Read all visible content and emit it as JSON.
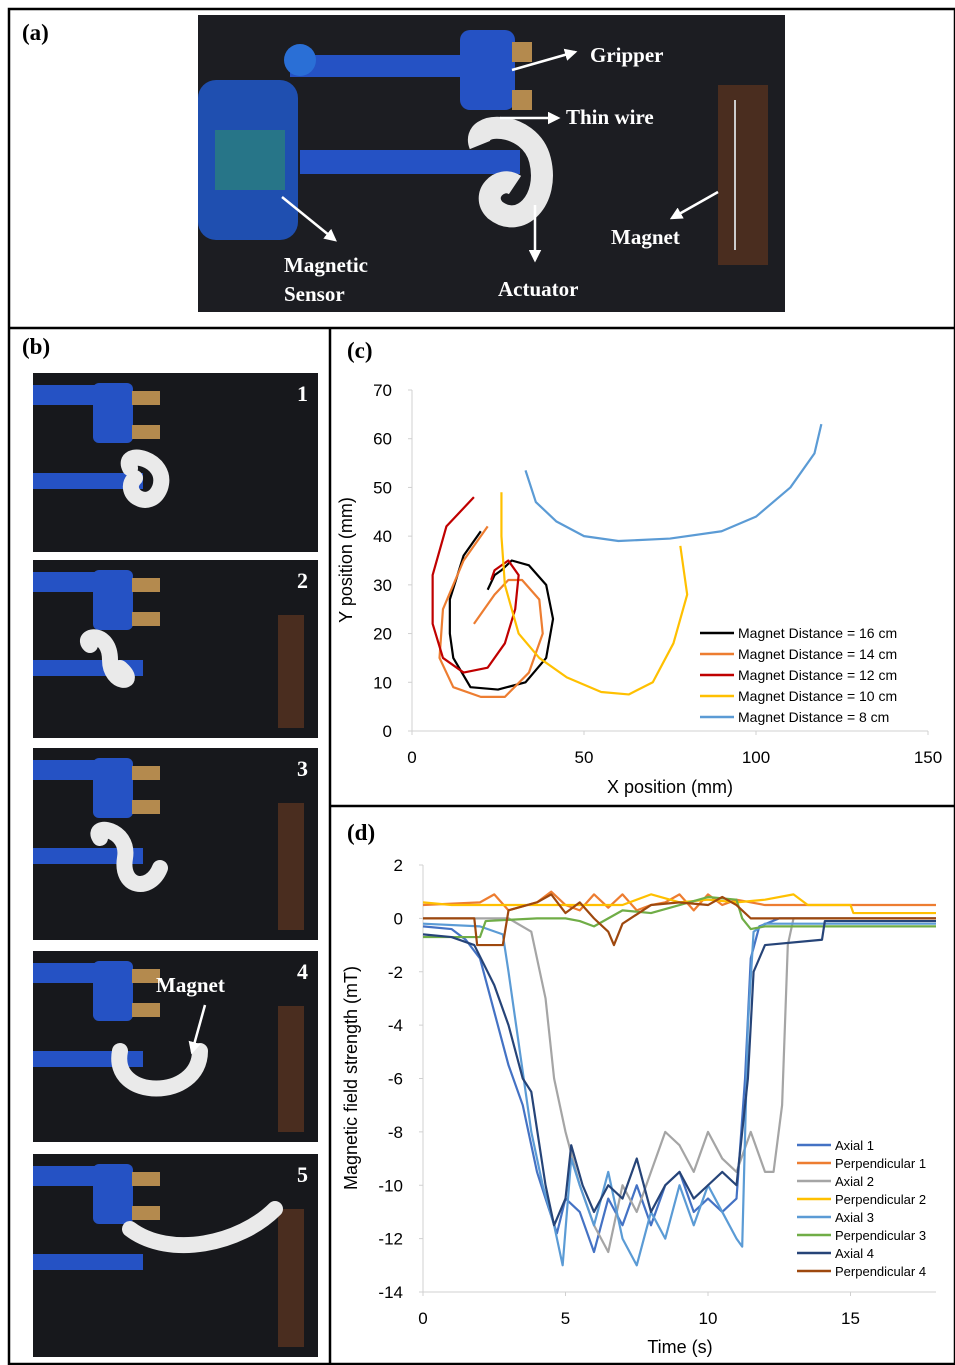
{
  "panels": {
    "a": {
      "label": "(a)",
      "gripper": "Gripper",
      "wire": "Thin wire",
      "sensor": [
        "Magnetic",
        "Sensor"
      ],
      "actuator": "Actuator",
      "magnet": "Magnet"
    },
    "b": {
      "label": "(b)",
      "frames": [
        "1",
        "2",
        "3",
        "4",
        "5"
      ],
      "magnet": "Magnet"
    },
    "c": {
      "label": "(c)"
    },
    "d": {
      "label": "(d)"
    }
  },
  "chart_data": [
    {
      "type": "line",
      "xlabel": "X position (mm)",
      "ylabel": "Y position (mm)",
      "xlim": [
        0,
        150
      ],
      "ylim": [
        0,
        70
      ],
      "xticks": [
        0,
        50,
        100,
        150
      ],
      "yticks": [
        0,
        10,
        20,
        30,
        40,
        50,
        60,
        70
      ],
      "legend": "lower right",
      "grid": false,
      "series": [
        {
          "name": "Magnet Distance = 16 cm",
          "color": "#000000",
          "x": [
            20,
            15,
            11,
            11,
            12,
            17,
            25,
            33,
            39,
            41,
            39,
            34,
            29,
            26,
            24,
            22
          ],
          "values": [
            41,
            36,
            27,
            20,
            15,
            9,
            8.5,
            10,
            15,
            23,
            30,
            34,
            35,
            33,
            32,
            29
          ]
        },
        {
          "name": "Magnet Distance = 14 cm",
          "color": "#ed7d31",
          "x": [
            22,
            15,
            9,
            8,
            12,
            20,
            27,
            34,
            38,
            37,
            32,
            28,
            24,
            18
          ],
          "values": [
            42,
            35,
            25,
            15,
            9,
            7,
            7,
            12,
            20,
            27,
            31,
            31,
            28,
            22
          ]
        },
        {
          "name": "Magnet Distance = 12 cm",
          "color": "#c00000",
          "x": [
            18,
            10,
            6,
            6,
            9,
            15,
            22,
            27,
            30,
            31,
            28,
            24,
            23
          ],
          "values": [
            48,
            42,
            32,
            22,
            15,
            12,
            13,
            18,
            25,
            32,
            35,
            33,
            31
          ]
        },
        {
          "name": "Magnet Distance = 10 cm",
          "color": "#ffc000",
          "x": [
            26,
            26,
            27,
            31,
            37,
            45,
            55,
            63,
            70,
            76,
            80,
            78
          ],
          "values": [
            49,
            40,
            30,
            20,
            15,
            11,
            8,
            7.5,
            10,
            18,
            28,
            38
          ]
        },
        {
          "name": "Magnet Distance = 8 cm",
          "color": "#5b9bd5",
          "x": [
            33,
            36,
            42,
            50,
            60,
            75,
            90,
            100,
            110,
            117,
            119
          ],
          "values": [
            53.5,
            47,
            43,
            40,
            39,
            39.5,
            41,
            44,
            50,
            57,
            63
          ]
        }
      ]
    },
    {
      "type": "line",
      "xlabel": "Time (s)",
      "ylabel": "Magnetic field strength (mT)",
      "xlim": [
        0,
        18
      ],
      "ylim": [
        -14,
        2
      ],
      "xticks": [
        0,
        5,
        10,
        15
      ],
      "yticks": [
        2,
        0,
        -2,
        -4,
        -6,
        -8,
        -10,
        -12,
        -14
      ],
      "legend": "lower right",
      "grid": false,
      "series": [
        {
          "name": "Axial 1",
          "color": "#4472c4",
          "x": [
            0,
            1,
            1.5,
            2,
            2.5,
            3,
            3.5,
            4,
            4.3,
            4.7,
            5,
            5.5,
            6,
            6.5,
            7,
            7.5,
            8,
            8.5,
            9,
            9.5,
            10,
            10.5,
            11,
            11.3,
            11.5,
            11.8,
            12.5,
            18
          ],
          "values": [
            -0.3,
            -0.4,
            -0.8,
            -1.5,
            -3.5,
            -5.5,
            -7,
            -9.5,
            -10.5,
            -11.8,
            -10.5,
            -11,
            -12.5,
            -10.5,
            -11.5,
            -10,
            -11.5,
            -10,
            -9.5,
            -11,
            -10.5,
            -11,
            -10.5,
            -6,
            -1.5,
            -0.3,
            0,
            0
          ]
        },
        {
          "name": "Perpendicular 1",
          "color": "#ed7d31",
          "x": [
            0,
            2,
            2.5,
            3,
            4,
            4.5,
            5,
            5.5,
            6,
            6.5,
            7,
            7.5,
            8,
            8.5,
            9,
            9.5,
            10,
            10.5,
            11,
            12,
            18
          ],
          "values": [
            0.5,
            0.6,
            0.9,
            0.3,
            0.6,
            1,
            0.5,
            0.3,
            0.9,
            0.4,
            0.9,
            0.3,
            0.5,
            0.6,
            0.9,
            0.3,
            0.9,
            0.5,
            0.7,
            0.5,
            0.5
          ]
        },
        {
          "name": "Axial 2",
          "color": "#a5a5a5",
          "x": [
            0,
            3,
            3.8,
            4.3,
            4.6,
            5,
            5.5,
            6,
            6.5,
            7,
            7.5,
            8,
            8.5,
            9,
            9.5,
            10,
            10.5,
            11,
            11.5,
            12,
            12.3,
            12.6,
            12.8,
            13,
            18
          ],
          "values": [
            0,
            0,
            -0.5,
            -3,
            -6,
            -8,
            -10,
            -11.5,
            -12.5,
            -10,
            -11,
            -9.5,
            -8,
            -8.5,
            -9.5,
            -8,
            -9,
            -9.5,
            -8,
            -9.5,
            -9.5,
            -7,
            -1,
            0,
            0
          ]
        },
        {
          "name": "Perpendicular 2",
          "color": "#ffc000",
          "x": [
            0,
            1,
            5,
            7,
            8,
            9,
            10,
            11,
            12,
            13,
            13.5,
            15,
            15.1,
            18
          ],
          "values": [
            0.6,
            0.5,
            0.5,
            0.5,
            0.9,
            0.6,
            0.7,
            0.6,
            0.7,
            0.9,
            0.5,
            0.5,
            0.2,
            0.2
          ]
        },
        {
          "name": "Axial 3",
          "color": "#5b9bd5",
          "x": [
            0,
            2,
            2.8,
            3,
            3.4,
            3.8,
            4.2,
            4.6,
            4.9,
            5.2,
            5.5,
            6,
            6.5,
            7,
            7.5,
            8,
            8.5,
            9,
            9.5,
            10,
            10.5,
            11,
            11.2,
            11.4,
            11.6,
            12,
            18
          ],
          "values": [
            -0.2,
            -0.3,
            -0.6,
            -2,
            -5,
            -8,
            -10,
            -11.5,
            -13,
            -9,
            -10,
            -11.5,
            -9.5,
            -12,
            -13,
            -11,
            -12,
            -10,
            -11.5,
            -10,
            -11,
            -12,
            -12.3,
            -4,
            -0.5,
            -0.2,
            -0.2
          ]
        },
        {
          "name": "Perpendicular 3",
          "color": "#70ad47",
          "x": [
            0,
            2,
            2.2,
            4,
            5,
            5.5,
            6,
            7,
            8,
            9,
            10,
            11,
            11.2,
            11.5,
            12,
            18
          ],
          "values": [
            -0.7,
            -0.7,
            -0.1,
            0,
            0,
            -0.1,
            -0.3,
            0.3,
            0.2,
            0.5,
            0.8,
            0.7,
            0,
            -0.4,
            -0.3,
            -0.3
          ]
        },
        {
          "name": "Axial 4",
          "color": "#264478",
          "x": [
            0,
            1,
            1.8,
            2.5,
            3,
            3.5,
            3.8,
            4.3,
            4.6,
            5,
            5.2,
            5.6,
            6,
            6.5,
            7,
            7.5,
            8,
            8.5,
            9,
            9.5,
            10,
            10.5,
            11,
            11.4,
            11.6,
            12,
            14,
            14.1,
            18
          ],
          "values": [
            -0.6,
            -0.7,
            -1,
            -2.5,
            -4,
            -6,
            -6.5,
            -10,
            -11.5,
            -10.5,
            -8.5,
            -10,
            -11,
            -10,
            -10.5,
            -9,
            -11,
            -10,
            -9.5,
            -10.5,
            -10,
            -9.5,
            -10,
            -6,
            -2,
            -1,
            -0.8,
            -0.1,
            -0.1
          ]
        },
        {
          "name": "Perpendicular 4",
          "color": "#9e480e",
          "x": [
            0,
            1.8,
            1.9,
            2.8,
            3,
            4,
            4.5,
            5,
            5.5,
            6,
            6.5,
            6.7,
            7,
            8,
            9,
            10,
            10.5,
            11,
            11.5,
            18
          ],
          "values": [
            0,
            0,
            -1,
            -1,
            0.3,
            0.6,
            0.9,
            0.2,
            0.6,
            0,
            -0.5,
            -1,
            -0.2,
            0.5,
            0.6,
            0.5,
            0.8,
            0.5,
            0,
            0
          ]
        }
      ]
    }
  ]
}
